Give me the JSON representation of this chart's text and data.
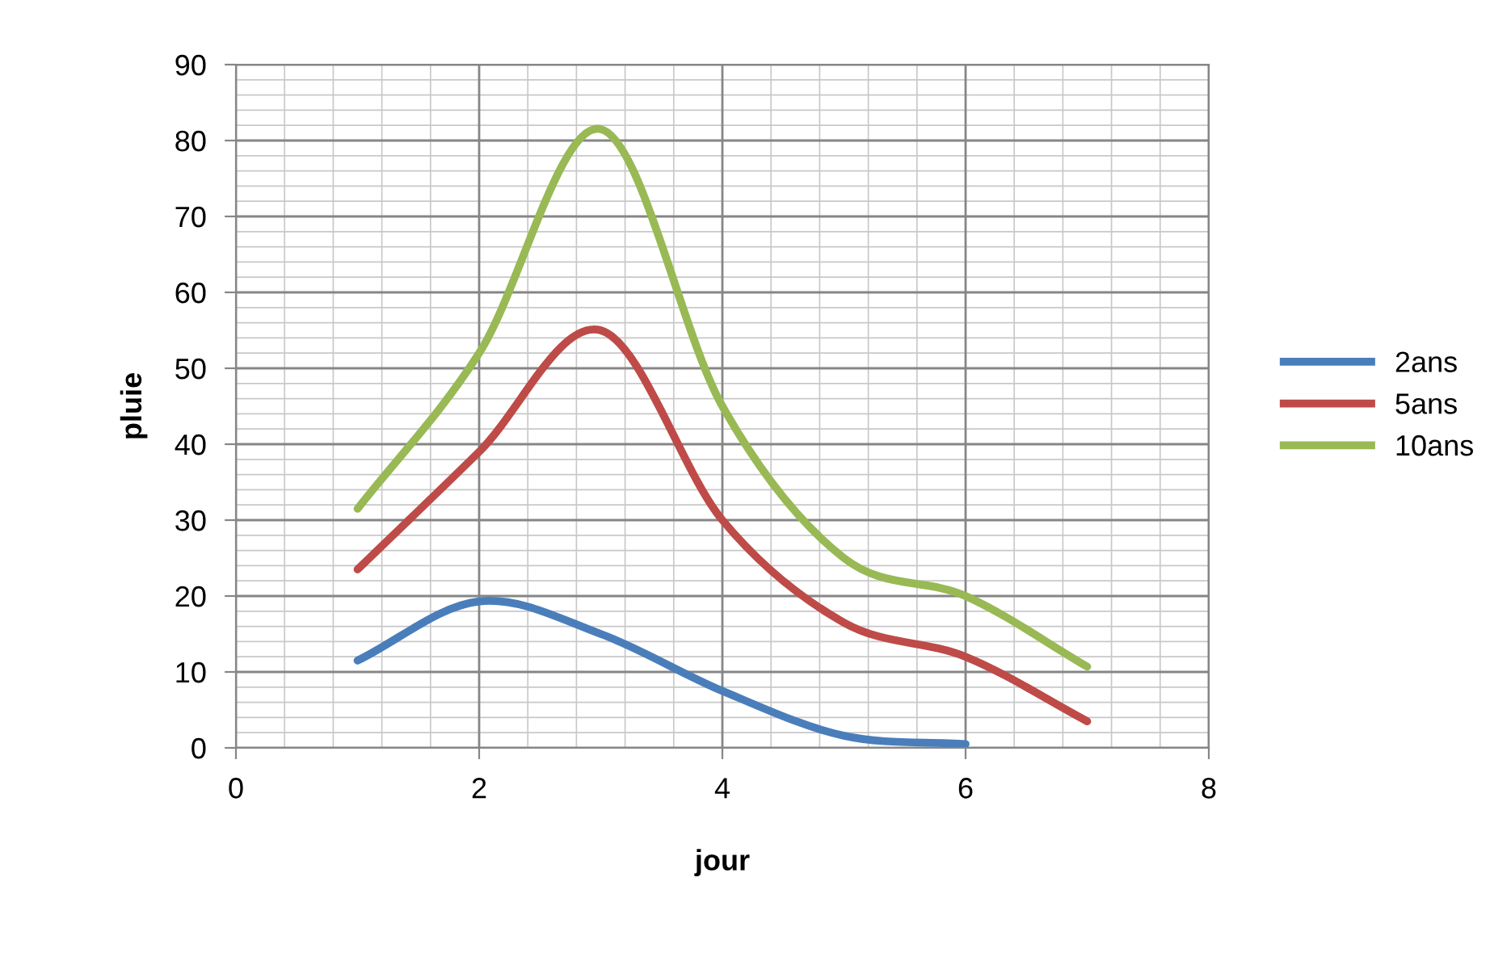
{
  "chart_data": {
    "type": "line",
    "xlabel": "jour",
    "ylabel": "pluie",
    "x": [
      1,
      2,
      3,
      4,
      5,
      6,
      7
    ],
    "series": [
      {
        "name": "2ans",
        "color": "#4a7ebb",
        "values": [
          11.5,
          19.3,
          15,
          7.5,
          1.6,
          0.5,
          null
        ]
      },
      {
        "name": "5ans",
        "color": "#be4b48",
        "values": [
          23.5,
          39,
          55,
          30,
          16.5,
          12,
          3.5
        ]
      },
      {
        "name": "10ans",
        "color": "#98b954",
        "values": [
          31.5,
          52,
          81.5,
          45,
          25,
          20,
          10.7
        ]
      }
    ],
    "xlim": [
      0,
      8
    ],
    "xticks": [
      0,
      2,
      4,
      6,
      8
    ],
    "ylim": [
      0,
      90
    ],
    "yticks": [
      0,
      10,
      20,
      30,
      40,
      50,
      60,
      70,
      80,
      90
    ],
    "grid": true,
    "legend": "right",
    "marker": "none",
    "line_style": "solid"
  }
}
